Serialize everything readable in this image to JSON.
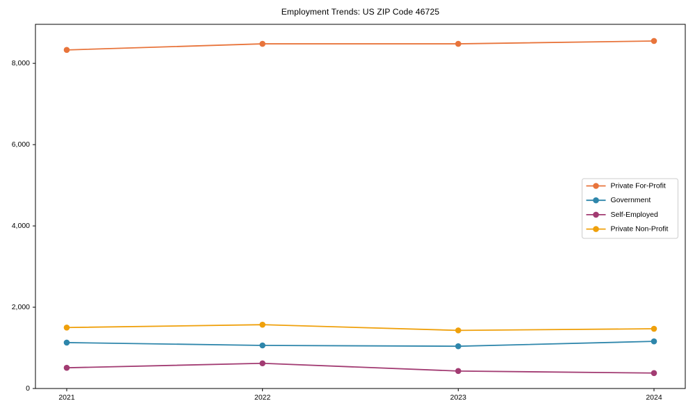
{
  "chart_data": {
    "type": "line",
    "title": "Employment Trends: US ZIP Code 46725",
    "x_values": [
      2021,
      2022,
      2023,
      2024
    ],
    "x_tick_labels": [
      "2021",
      "2022",
      "2023",
      "2024"
    ],
    "y_ticks": [
      0,
      2000,
      4000,
      6000,
      8000
    ],
    "y_tick_labels": [
      "0",
      "2,000",
      "4,000",
      "6,000",
      "8,000"
    ],
    "ylim": [
      0,
      8960
    ],
    "xlabel": "",
    "ylabel": "",
    "grid": false,
    "legend": {
      "position": "center-right",
      "background": "#ffffff",
      "border_color": "#cccccc"
    },
    "axis_color": "#000000",
    "marker": "circle",
    "series": [
      {
        "name": "Private For-Profit",
        "color": "#E8743B",
        "values": [
          8330,
          8480,
          8480,
          8550
        ]
      },
      {
        "name": "Government",
        "color": "#2E86AB",
        "values": [
          1130,
          1060,
          1040,
          1160
        ]
      },
      {
        "name": "Self-Employed",
        "color": "#A23B72",
        "values": [
          510,
          620,
          430,
          380
        ]
      },
      {
        "name": "Private Non-Profit",
        "color": "#EFA00B",
        "values": [
          1500,
          1570,
          1430,
          1470
        ]
      }
    ]
  }
}
